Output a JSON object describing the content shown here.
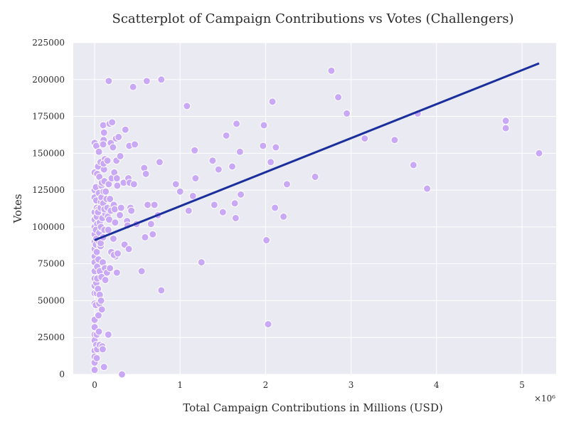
{
  "chart_data": {
    "type": "scatter",
    "title": "Scatterplot of Campaign Contributions vs Votes (Challengers)",
    "xlabel": "Total Campaign Contributions in Millions (USD)",
    "ylabel": "Votes",
    "x_scale_label": "×10⁶",
    "xlim": [
      -250000,
      5400000
    ],
    "ylim": [
      0,
      225000
    ],
    "x_ticks": [
      0,
      1000000,
      2000000,
      3000000,
      4000000,
      5000000
    ],
    "x_tick_labels": [
      "0",
      "1",
      "2",
      "3",
      "4",
      "5"
    ],
    "y_ticks": [
      0,
      25000,
      50000,
      75000,
      100000,
      125000,
      150000,
      175000,
      200000,
      225000
    ],
    "y_tick_labels": [
      "0",
      "25000",
      "50000",
      "75000",
      "100000",
      "125000",
      "150000",
      "175000",
      "200000",
      "225000"
    ],
    "grid": true,
    "colors": {
      "background": "#eaeaf2",
      "point": "#c9a9f5",
      "trend": "#1a2f9c"
    },
    "trend_line": {
      "x": [
        0,
        5200000
      ],
      "y": [
        91000,
        211000
      ]
    },
    "points": [
      [
        0,
        125000
      ],
      [
        0,
        120000
      ],
      [
        0,
        110000
      ],
      [
        0,
        105000
      ],
      [
        0,
        100000
      ],
      [
        0,
        95000
      ],
      [
        0,
        90000
      ],
      [
        0,
        85000
      ],
      [
        0,
        80000
      ],
      [
        0,
        76000
      ],
      [
        0,
        70000
      ],
      [
        0,
        65000
      ],
      [
        0,
        60000
      ],
      [
        0,
        55000
      ],
      [
        0,
        48000
      ],
      [
        0,
        37000
      ],
      [
        0,
        32000
      ],
      [
        0,
        27000
      ],
      [
        0,
        23000
      ],
      [
        0,
        16000
      ],
      [
        0,
        12000
      ],
      [
        0,
        8000
      ],
      [
        0,
        3000
      ],
      [
        0,
        137000
      ],
      [
        0,
        157000
      ],
      [
        15000,
        127000
      ],
      [
        20000,
        118000
      ],
      [
        25000,
        107000
      ],
      [
        30000,
        102000
      ],
      [
        20000,
        92000
      ],
      [
        15000,
        88000
      ],
      [
        25000,
        83000
      ],
      [
        30000,
        73000
      ],
      [
        20000,
        62000
      ],
      [
        25000,
        55000
      ],
      [
        15000,
        47000
      ],
      [
        20000,
        20000
      ],
      [
        30000,
        17000
      ],
      [
        25000,
        11000
      ],
      [
        20000,
        155000
      ],
      [
        30000,
        136000
      ],
      [
        25000,
        113000
      ],
      [
        15000,
        98000
      ],
      [
        30000,
        65000
      ],
      [
        25000,
        27000
      ],
      [
        40000,
        141000
      ],
      [
        50000,
        123000
      ],
      [
        45000,
        112000
      ],
      [
        60000,
        103000
      ],
      [
        55000,
        96000
      ],
      [
        50000,
        90000
      ],
      [
        45000,
        78000
      ],
      [
        60000,
        70000
      ],
      [
        40000,
        58000
      ],
      [
        55000,
        48000
      ],
      [
        45000,
        40000
      ],
      [
        60000,
        20000
      ],
      [
        50000,
        151000
      ],
      [
        55000,
        134000
      ],
      [
        40000,
        110000
      ],
      [
        65000,
        87000
      ],
      [
        60000,
        54000
      ],
      [
        50000,
        29000
      ],
      [
        70000,
        144000
      ],
      [
        80000,
        128000
      ],
      [
        75000,
        117000
      ],
      [
        90000,
        106000
      ],
      [
        85000,
        99000
      ],
      [
        70000,
        87000
      ],
      [
        95000,
        76000
      ],
      [
        80000,
        66000
      ],
      [
        75000,
        50000
      ],
      [
        85000,
        44000
      ],
      [
        90000,
        19000
      ],
      [
        95000,
        17000
      ],
      [
        80000,
        120000
      ],
      [
        70000,
        113000
      ],
      [
        90000,
        157000
      ],
      [
        85000,
        130000
      ],
      [
        75000,
        100000
      ],
      [
        70000,
        89000
      ],
      [
        100000,
        169000
      ],
      [
        110000,
        164000
      ],
      [
        105000,
        159000
      ],
      [
        100000,
        156000
      ],
      [
        120000,
        146000
      ],
      [
        110000,
        139000
      ],
      [
        115000,
        131000
      ],
      [
        105000,
        124000
      ],
      [
        100000,
        116000
      ],
      [
        125000,
        109000
      ],
      [
        115000,
        98000
      ],
      [
        100000,
        93000
      ],
      [
        120000,
        72000
      ],
      [
        125000,
        64000
      ],
      [
        110000,
        5000
      ],
      [
        130000,
        124000
      ],
      [
        115000,
        112000
      ],
      [
        105000,
        143000
      ],
      [
        150000,
        145000
      ],
      [
        165000,
        129000
      ],
      [
        140000,
        119000
      ],
      [
        155000,
        107000
      ],
      [
        160000,
        98000
      ],
      [
        145000,
        69000
      ],
      [
        170000,
        105000
      ],
      [
        150000,
        113000
      ],
      [
        160000,
        27000
      ],
      [
        165000,
        199000
      ],
      [
        175000,
        170000
      ],
      [
        190000,
        157000
      ],
      [
        200000,
        133000
      ],
      [
        180000,
        119000
      ],
      [
        210000,
        114000
      ],
      [
        195000,
        83000
      ],
      [
        180000,
        72000
      ],
      [
        205000,
        171000
      ],
      [
        215000,
        154000
      ],
      [
        190000,
        111000
      ],
      [
        230000,
        137000
      ],
      [
        225000,
        115000
      ],
      [
        240000,
        103000
      ],
      [
        220000,
        92000
      ],
      [
        245000,
        80000
      ],
      [
        235000,
        112000
      ],
      [
        225000,
        81000
      ],
      [
        250000,
        160000
      ],
      [
        255000,
        145000
      ],
      [
        260000,
        133000
      ],
      [
        265000,
        128000
      ],
      [
        260000,
        69000
      ],
      [
        280000,
        161000
      ],
      [
        270000,
        82000
      ],
      [
        300000,
        148000
      ],
      [
        310000,
        113000
      ],
      [
        295000,
        108000
      ],
      [
        320000,
        0
      ],
      [
        340000,
        130000
      ],
      [
        350000,
        88000
      ],
      [
        360000,
        166000
      ],
      [
        380000,
        104000
      ],
      [
        385000,
        101000
      ],
      [
        395000,
        133000
      ],
      [
        410000,
        130000
      ],
      [
        400000,
        85000
      ],
      [
        405000,
        155000
      ],
      [
        420000,
        113000
      ],
      [
        430000,
        111000
      ],
      [
        450000,
        195000
      ],
      [
        460000,
        129000
      ],
      [
        470000,
        156000
      ],
      [
        490000,
        102000
      ],
      [
        550000,
        70000
      ],
      [
        580000,
        140000
      ],
      [
        600000,
        136000
      ],
      [
        590000,
        93000
      ],
      [
        610000,
        199000
      ],
      [
        620000,
        115000
      ],
      [
        660000,
        102000
      ],
      [
        680000,
        95000
      ],
      [
        700000,
        115000
      ],
      [
        740000,
        108000
      ],
      [
        760000,
        144000
      ],
      [
        780000,
        200000
      ],
      [
        780000,
        57000
      ],
      [
        950000,
        129000
      ],
      [
        1000000,
        124000
      ],
      [
        1080000,
        182000
      ],
      [
        1100000,
        111000
      ],
      [
        1150000,
        121000
      ],
      [
        1170000,
        152000
      ],
      [
        1180000,
        133000
      ],
      [
        1250000,
        76000
      ],
      [
        1380000,
        145000
      ],
      [
        1400000,
        115000
      ],
      [
        1450000,
        139000
      ],
      [
        1500000,
        110000
      ],
      [
        1540000,
        162000
      ],
      [
        1610000,
        141000
      ],
      [
        1640000,
        116000
      ],
      [
        1650000,
        106000
      ],
      [
        1660000,
        170000
      ],
      [
        1700000,
        151000
      ],
      [
        1710000,
        122000
      ],
      [
        1970000,
        155000
      ],
      [
        1980000,
        169000
      ],
      [
        2010000,
        91000
      ],
      [
        2030000,
        34000
      ],
      [
        2060000,
        144000
      ],
      [
        2080000,
        185000
      ],
      [
        2110000,
        113000
      ],
      [
        2120000,
        154000
      ],
      [
        2210000,
        107000
      ],
      [
        2250000,
        129000
      ],
      [
        2580000,
        134000
      ],
      [
        2770000,
        206000
      ],
      [
        2850000,
        188000
      ],
      [
        2950000,
        177000
      ],
      [
        3160000,
        160000
      ],
      [
        3510000,
        159000
      ],
      [
        3730000,
        142000
      ],
      [
        3780000,
        177000
      ],
      [
        3890000,
        126000
      ],
      [
        4810000,
        172000
      ],
      [
        4810000,
        167000
      ],
      [
        5200000,
        150000
      ]
    ]
  }
}
